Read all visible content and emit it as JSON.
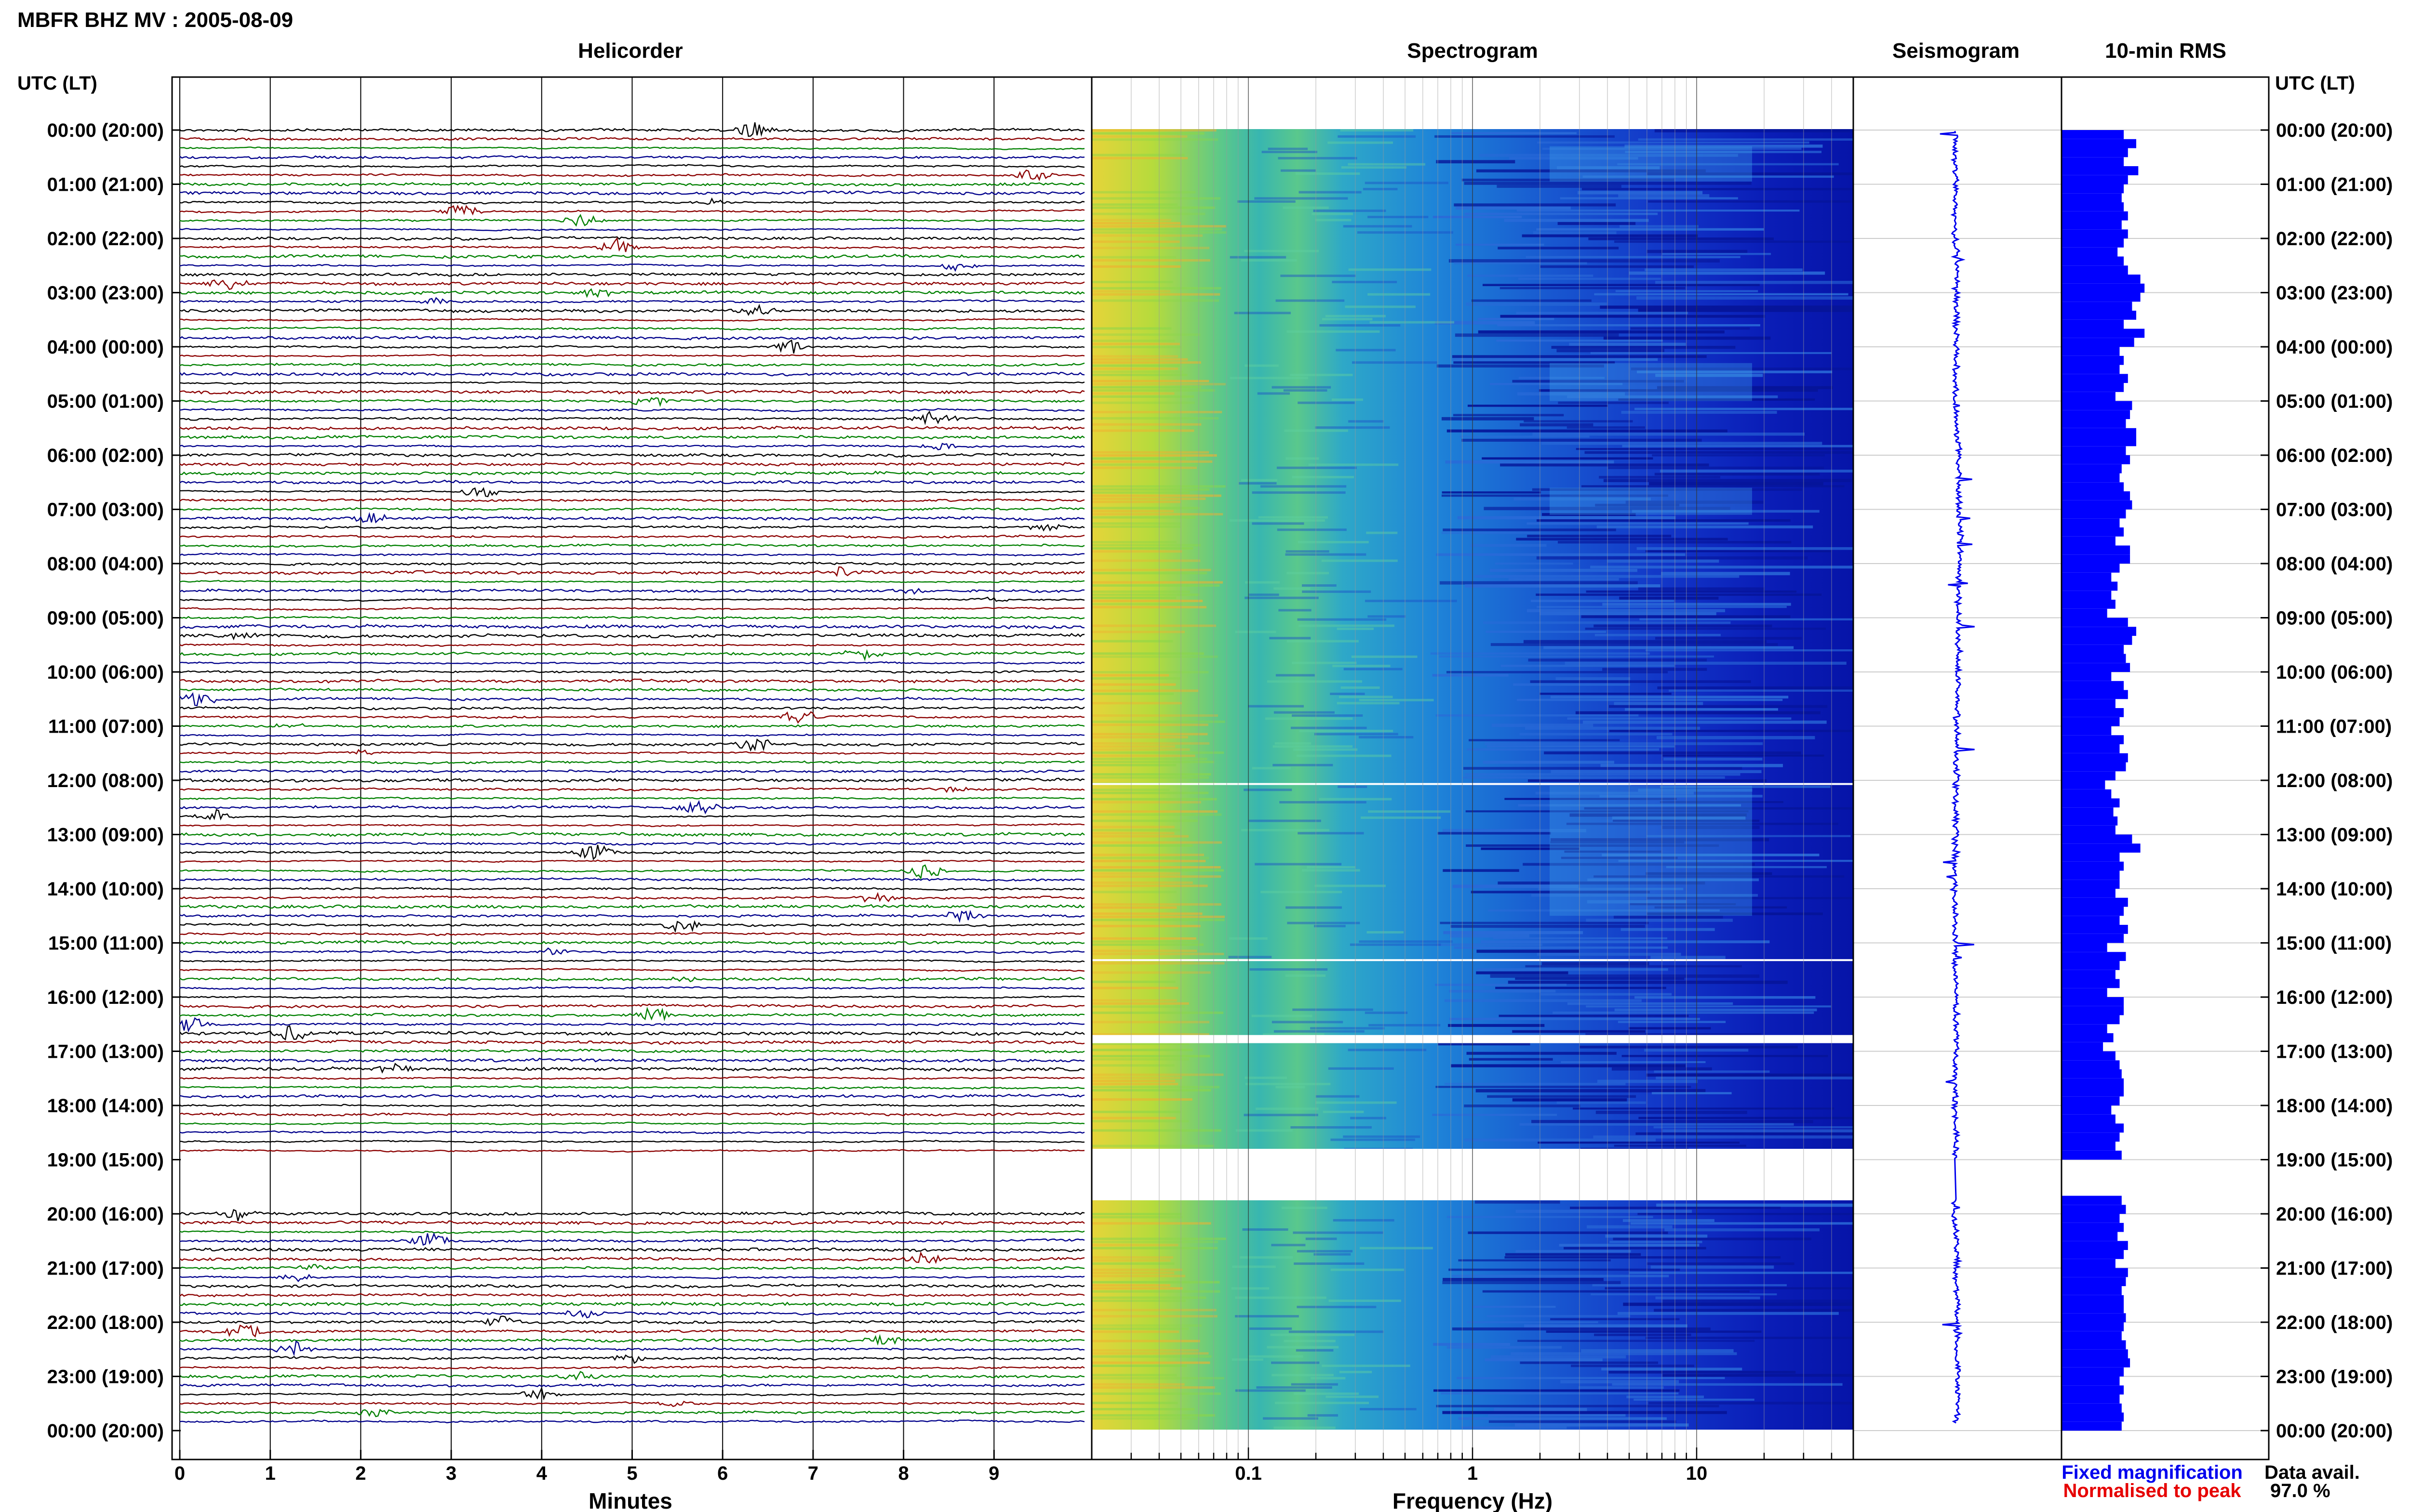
{
  "header": {
    "title": "MBFR BHZ MV : 2005-08-09",
    "utc_lt_label": "UTC (LT)"
  },
  "panels": {
    "helicorder_title": "Helicorder",
    "spectrogram_title": "Spectrogram",
    "seismogram_title": "Seismogram",
    "rms_title": "10-min RMS"
  },
  "legend": {
    "fixed_magnification": "Fixed magnification",
    "normalised_to_peak": "Normalised to peak",
    "data_avail_label": "Data avail.",
    "data_avail_value": "97.0 %"
  },
  "colors": {
    "blue": "#0000ee",
    "red": "#e60000",
    "trace_black": "#000000",
    "trace_red": "#8b0000",
    "trace_green": "#008000",
    "trace_blue": "#00008b",
    "rms_bar": "#0000ff"
  },
  "chart_data": [
    {
      "type": "line",
      "name": "helicorder",
      "title": "Helicorder",
      "xlabel": "Minutes",
      "x_ticks": [
        0,
        1,
        2,
        3,
        4,
        5,
        6,
        7,
        8,
        9
      ],
      "xlim": [
        0,
        10
      ],
      "y_tick_labels": [
        "00:00 (20:00)",
        "01:00 (21:00)",
        "02:00 (22:00)",
        "03:00 (23:00)",
        "04:00 (00:00)",
        "05:00 (01:00)",
        "06:00 (02:00)",
        "07:00 (03:00)",
        "08:00 (04:00)",
        "09:00 (05:00)",
        "10:00 (06:00)",
        "11:00 (07:00)",
        "12:00 (08:00)",
        "13:00 (09:00)",
        "14:00 (10:00)",
        "15:00 (11:00)",
        "16:00 (12:00)",
        "17:00 (13:00)",
        "18:00 (14:00)",
        "19:00 (15:00)",
        "20:00 (16:00)",
        "21:00 (17:00)",
        "22:00 (18:00)",
        "23:00 (19:00)",
        "00:00 (20:00)"
      ],
      "trace_minutes_per_line": 10,
      "trace_colors_cycle": [
        "black",
        "red",
        "green",
        "blue"
      ],
      "data_gap_hours": [
        19.0,
        20.0
      ]
    },
    {
      "type": "heatmap",
      "name": "spectrogram",
      "title": "Spectrogram",
      "xlabel": "Frequency (Hz)",
      "x_scale": "log",
      "x_tick_labels": [
        "0.1",
        "1",
        "10"
      ],
      "xlim": [
        0.02,
        50
      ],
      "ylim_hours": [
        0,
        24
      ]
    },
    {
      "type": "line",
      "name": "seismogram",
      "title": "Seismogram",
      "ylim_hours": [
        0,
        24
      ]
    },
    {
      "type": "bar",
      "name": "rms",
      "title": "10-min RMS",
      "orientation": "horizontal",
      "ylim_hours": [
        0,
        24
      ],
      "values": [
        0.3,
        0.36,
        0.32,
        0.3,
        0.37,
        0.32,
        0.3,
        0.29,
        0.3,
        0.32,
        0.29,
        0.32,
        0.3,
        0.27,
        0.3,
        0.32,
        0.38,
        0.4,
        0.38,
        0.34,
        0.36,
        0.3,
        0.4,
        0.35,
        0.28,
        0.3,
        0.28,
        0.32,
        0.3,
        0.26,
        0.34,
        0.33,
        0.31,
        0.36,
        0.36,
        0.31,
        0.33,
        0.29,
        0.28,
        0.3,
        0.33,
        0.34,
        0.31,
        0.28,
        0.3,
        0.26,
        0.33,
        0.33,
        0.28,
        0.24,
        0.27,
        0.24,
        0.26,
        0.22,
        0.32,
        0.36,
        0.34,
        0.3,
        0.31,
        0.33,
        0.24,
        0.3,
        0.32,
        0.26,
        0.3,
        0.28,
        0.24,
        0.3,
        0.28,
        0.32,
        0.31,
        0.26,
        0.21,
        0.24,
        0.28,
        0.25,
        0.27,
        0.26,
        0.34,
        0.38,
        0.28,
        0.3,
        0.28,
        0.28,
        0.26,
        0.32,
        0.3,
        0.28,
        0.32,
        0.3,
        0.22,
        0.31,
        0.28,
        0.26,
        0.28,
        0.22,
        0.3,
        0.3,
        0.28,
        0.22,
        0.25,
        0.2,
        0.26,
        0.28,
        0.29,
        0.3,
        0.3,
        0.28,
        0.24,
        0.26,
        0.3,
        0.28,
        0.26,
        0.29,
        0.28,
        0.32,
        0.31,
        0.33,
        0.29,
        0.31,
        0.28,
        0.3,
        0.27,
        0.32,
        0.3,
        0.26,
        0.32,
        0.31,
        0.29,
        0.3,
        0.3,
        0.31,
        0.3,
        0.29,
        0.31,
        0.32,
        0.33,
        0.3,
        0.28,
        0.3,
        0.28,
        0.29,
        0.3,
        0.29
      ],
      "gaps": [
        [
          19.0,
          19.6
        ]
      ]
    }
  ]
}
